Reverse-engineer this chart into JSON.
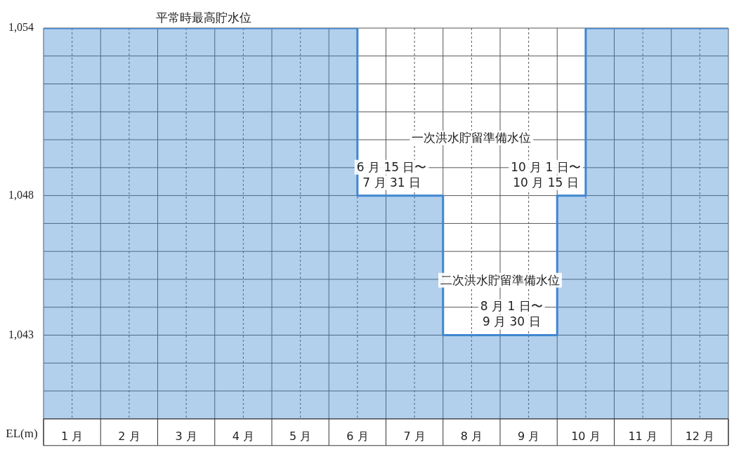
{
  "chart_data": {
    "type": "area",
    "ylabel": "EL(m)",
    "legend": false,
    "grid": true,
    "series": [
      {
        "color": "#3f86d0",
        "x": [
          0,
          5.5,
          5.5,
          7,
          7,
          9,
          9,
          9.5,
          9.5,
          12
        ],
        "values": [
          1054,
          1054,
          1048,
          1048,
          1043,
          1043,
          1048,
          1048,
          1054,
          1054
        ]
      }
    ],
    "xlim": [
      0,
      12
    ],
    "xticks": [
      {
        "value": 0,
        "label": null
      },
      {
        "value": 0.5,
        "label": "1 月"
      },
      {
        "value": 1,
        "label": null
      },
      {
        "value": 1.5,
        "label": "2 月"
      },
      {
        "value": 2,
        "label": null
      },
      {
        "value": 2.5,
        "label": "3 月"
      },
      {
        "value": 3,
        "label": null
      },
      {
        "value": 3.5,
        "label": "4 月"
      },
      {
        "value": 4,
        "label": null
      },
      {
        "value": 4.5,
        "label": "5 月"
      },
      {
        "value": 5,
        "label": null
      },
      {
        "value": 5.5,
        "label": "6 月"
      },
      {
        "value": 6,
        "label": null
      },
      {
        "value": 6.5,
        "label": "7 月"
      },
      {
        "value": 7,
        "label": null
      },
      {
        "value": 7.5,
        "label": "8 月"
      },
      {
        "value": 8,
        "label": null
      },
      {
        "value": 8.5,
        "label": "9 月"
      },
      {
        "value": 9,
        "label": null
      },
      {
        "value": 9.5,
        "label": "10 月"
      },
      {
        "value": 10,
        "label": null
      },
      {
        "value": 10.5,
        "label": "11 月"
      },
      {
        "value": 11,
        "label": null
      },
      {
        "value": 11.5,
        "label": "12 月"
      },
      {
        "value": 12,
        "label": null
      }
    ],
    "ylim": [
      1040,
      1054
    ],
    "yticks": [
      {
        "value": 1040,
        "label": null
      },
      {
        "value": 1041,
        "label": null
      },
      {
        "value": 1042,
        "label": null
      },
      {
        "value": 1043,
        "label": "1,043"
      },
      {
        "value": 1044,
        "label": null
      },
      {
        "value": 1045,
        "label": null
      },
      {
        "value": 1046,
        "label": null
      },
      {
        "value": 1047,
        "label": null
      },
      {
        "value": 1048,
        "label": "1,048"
      },
      {
        "value": 1049,
        "label": null
      },
      {
        "value": 1050,
        "label": null
      },
      {
        "value": 1051,
        "label": null
      },
      {
        "value": 1052,
        "label": null
      },
      {
        "value": 1053,
        "label": null
      },
      {
        "value": 1054,
        "label": "1,054"
      }
    ],
    "annotations": [
      {
        "text": "平常時最高貯水位",
        "x": 2.8,
        "y": 1054
      },
      "一次洪水貯留準備水位",
      "6 月 15 日〜\n7 月 31 日",
      "10 月 1 日〜\n10 月 15 日",
      "二次洪水貯留準備水位",
      "8 月 1 日〜\n9 月 30 日"
    ]
  }
}
